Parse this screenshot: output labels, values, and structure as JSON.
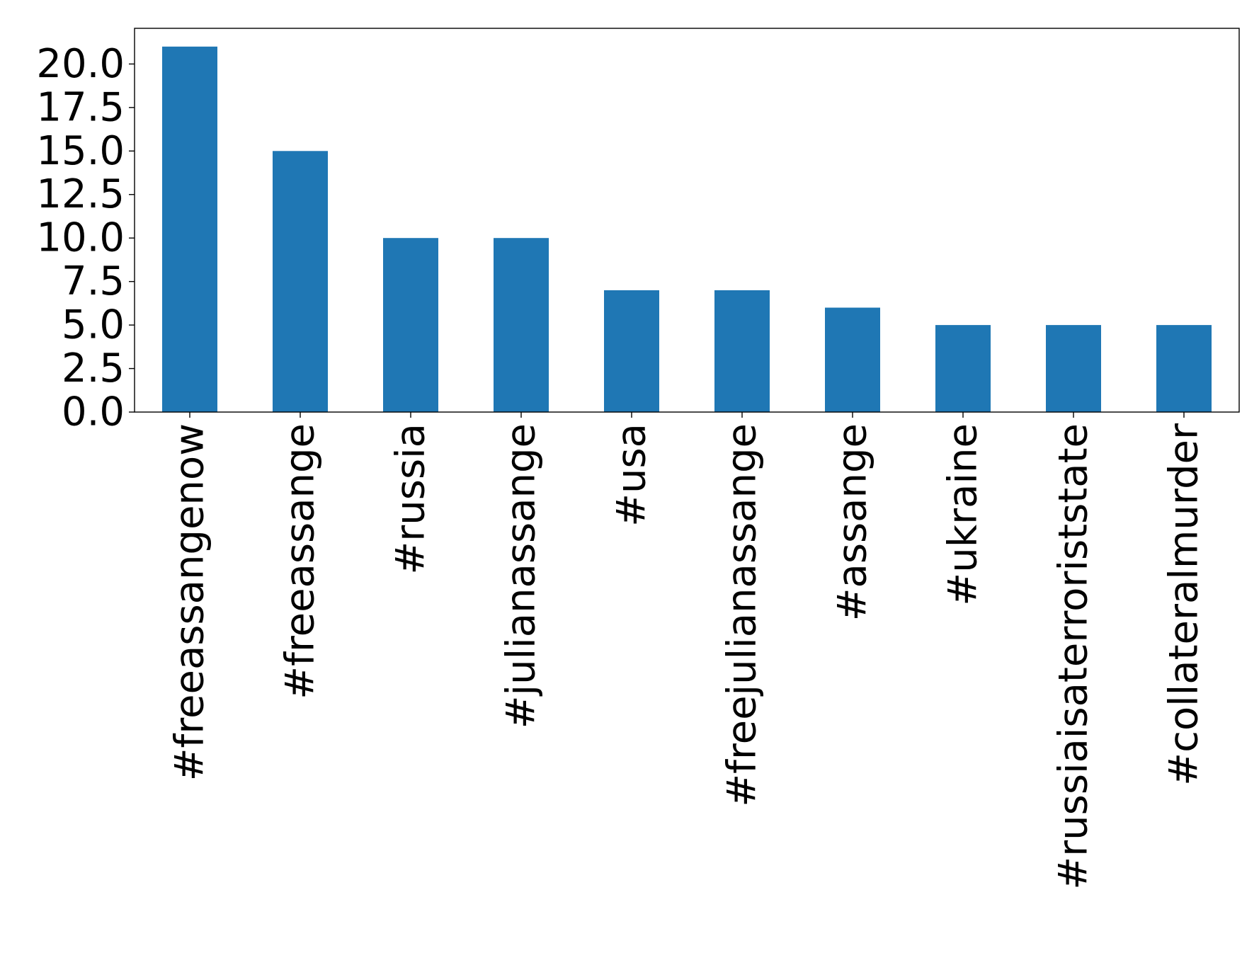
{
  "chart_data": {
    "type": "bar",
    "categories": [
      "#freeassangenow",
      "#freeassange",
      "#russia",
      "#julianassange",
      "#usa",
      "#freejulianassange",
      "#assange",
      "#ukraine",
      "#russiaisaterroriststate",
      "#collateralmurder"
    ],
    "values": [
      21,
      15,
      10,
      10,
      7,
      7,
      6,
      5,
      5,
      5
    ],
    "ylim": [
      0,
      22.05
    ],
    "yticks": [
      0.0,
      2.5,
      5.0,
      7.5,
      10.0,
      12.5,
      15.0,
      17.5,
      20.0
    ],
    "ytick_labels": [
      "0.0",
      "2.5",
      "5.0",
      "7.5",
      "10.0",
      "12.5",
      "15.0",
      "17.5",
      "20.0"
    ],
    "bar_color": "#1f77b4",
    "grid": false,
    "legend": "none"
  }
}
